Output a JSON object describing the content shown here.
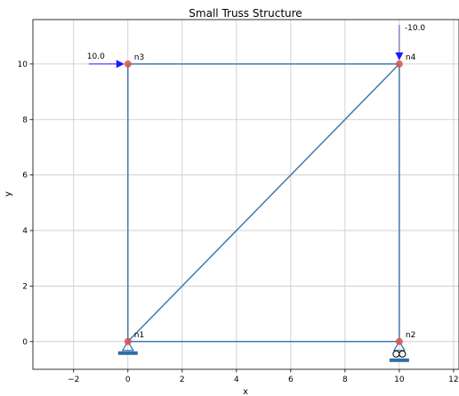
{
  "title": "Small Truss Structure",
  "x_label": "x",
  "y_label": "y",
  "x_ticks": [
    -2,
    0,
    2,
    4,
    6,
    8,
    10,
    12
  ],
  "y_ticks": [
    0,
    2,
    4,
    6,
    8,
    10
  ],
  "x_range": [
    -3.5,
    12.2
  ],
  "y_range": [
    -1.0,
    11.6
  ],
  "grid": true,
  "colors": {
    "member": "#3f7ab0",
    "node": "#d9534f",
    "load_horizontal": "#1a1aff",
    "load_vertical": "#5a3fa0",
    "support": "#2f6ea5",
    "grid": "#c8c8c8"
  },
  "nodes": [
    {
      "id": "n1",
      "x": 0,
      "y": 0
    },
    {
      "id": "n2",
      "x": 10,
      "y": 0
    },
    {
      "id": "n3",
      "x": 0,
      "y": 10
    },
    {
      "id": "n4",
      "x": 10,
      "y": 10
    }
  ],
  "members": [
    [
      "n1",
      "n2"
    ],
    [
      "n1",
      "n3"
    ],
    [
      "n2",
      "n4"
    ],
    [
      "n3",
      "n4"
    ],
    [
      "n1",
      "n4"
    ]
  ],
  "loads": [
    {
      "node": "n3",
      "fx": 10.0,
      "fy": 0,
      "label": "10.0"
    },
    {
      "node": "n4",
      "fx": 0,
      "fy": -10.0,
      "label": "-10.0"
    }
  ],
  "supports": [
    {
      "node": "n1",
      "type": "pin"
    },
    {
      "node": "n2",
      "type": "roller"
    }
  ]
}
